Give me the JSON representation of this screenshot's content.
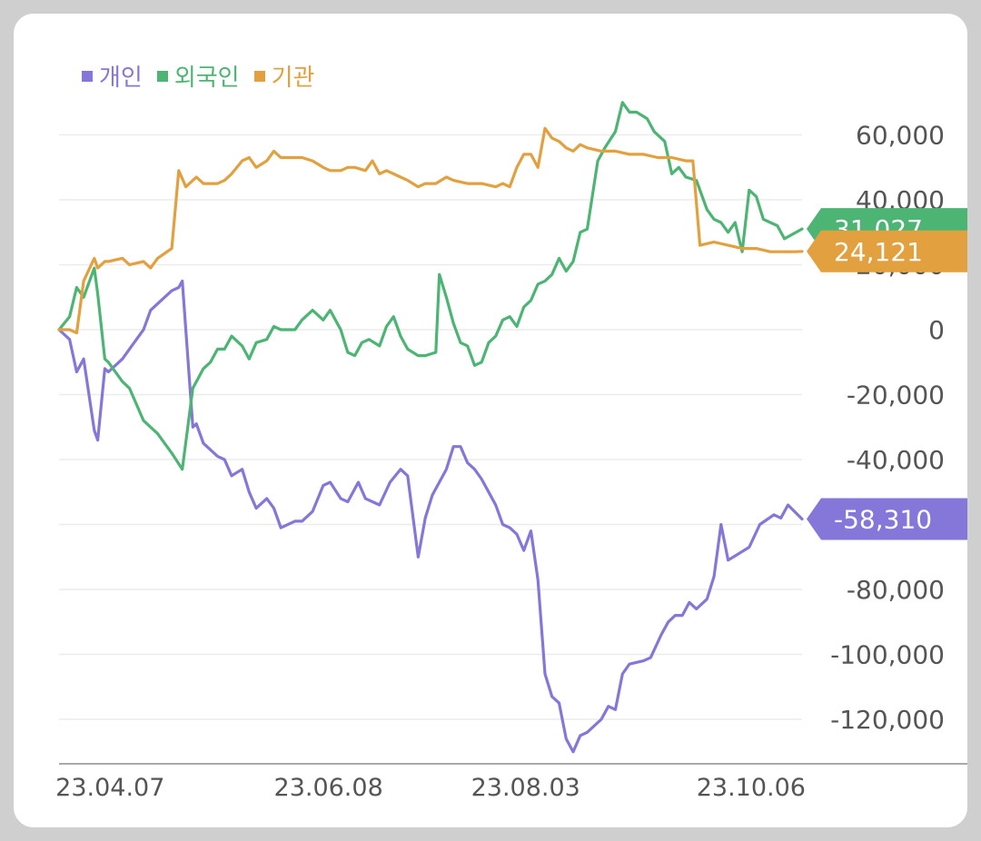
{
  "chart_data": {
    "type": "line",
    "title": "",
    "xlabel": "",
    "ylabel": "",
    "ylim": [
      -130000,
      70000
    ],
    "yticks": [
      60000,
      40000,
      20000,
      0,
      -20000,
      -40000,
      -60000,
      -80000,
      -100000,
      -120000
    ],
    "ytick_labels": [
      "60,000",
      "40,000",
      "20,000",
      "0",
      "-20,000",
      "-40,000",
      "-60,000",
      "-80,000",
      "-100,000",
      "-120,000"
    ],
    "xticks": [
      "23.04.07",
      "23.06.08",
      "23.08.03",
      "23.10.06"
    ],
    "grid": true,
    "legend_position": "top-left",
    "series": [
      {
        "name": "개인",
        "color": "#8577d9",
        "last_label": "-58,310",
        "points": [
          [
            "2023-03-24",
            0
          ],
          [
            "2023-03-27",
            -3000
          ],
          [
            "2023-03-29",
            -13000
          ],
          [
            "2023-03-31",
            -9000
          ],
          [
            "2023-04-03",
            -31000
          ],
          [
            "2023-04-04",
            -34000
          ],
          [
            "2023-04-06",
            -12000
          ],
          [
            "2023-04-07",
            -13000
          ],
          [
            "2023-04-11",
            -9000
          ],
          [
            "2023-04-13",
            -6000
          ],
          [
            "2023-04-17",
            0
          ],
          [
            "2023-04-19",
            6000
          ],
          [
            "2023-04-21",
            8000
          ],
          [
            "2023-04-25",
            12000
          ],
          [
            "2023-04-27",
            13000
          ],
          [
            "2023-04-28",
            15000
          ],
          [
            "2023-05-01",
            -30000
          ],
          [
            "2023-05-02",
            -29000
          ],
          [
            "2023-05-04",
            -35000
          ],
          [
            "2023-05-08",
            -39000
          ],
          [
            "2023-05-10",
            -40000
          ],
          [
            "2023-05-12",
            -45000
          ],
          [
            "2023-05-15",
            -43000
          ],
          [
            "2023-05-17",
            -50000
          ],
          [
            "2023-05-19",
            -55000
          ],
          [
            "2023-05-22",
            -52000
          ],
          [
            "2023-05-24",
            -55000
          ],
          [
            "2023-05-26",
            -61000
          ],
          [
            "2023-05-30",
            -59000
          ],
          [
            "2023-06-01",
            -59000
          ],
          [
            "2023-06-04",
            -56000
          ],
          [
            "2023-06-07",
            -48000
          ],
          [
            "2023-06-09",
            -47000
          ],
          [
            "2023-06-12",
            -52000
          ],
          [
            "2023-06-14",
            -53000
          ],
          [
            "2023-06-17",
            -47000
          ],
          [
            "2023-06-19",
            -52000
          ],
          [
            "2023-06-23",
            -54000
          ],
          [
            "2023-06-26",
            -47000
          ],
          [
            "2023-06-29",
            -43000
          ],
          [
            "2023-07-01",
            -45000
          ],
          [
            "2023-07-04",
            -70000
          ],
          [
            "2023-07-06",
            -58000
          ],
          [
            "2023-07-08",
            -51000
          ],
          [
            "2023-07-12",
            -43000
          ],
          [
            "2023-07-14",
            -36000
          ],
          [
            "2023-07-16",
            -36000
          ],
          [
            "2023-07-18",
            -41000
          ],
          [
            "2023-07-20",
            -43000
          ],
          [
            "2023-07-22",
            -46000
          ],
          [
            "2023-07-24",
            -50000
          ],
          [
            "2023-07-26",
            -54000
          ],
          [
            "2023-07-28",
            -60000
          ],
          [
            "2023-07-30",
            -61000
          ],
          [
            "2023-08-01",
            -63000
          ],
          [
            "2023-08-03",
            -68000
          ],
          [
            "2023-08-05",
            -62000
          ],
          [
            "2023-08-07",
            -77000
          ],
          [
            "2023-08-09",
            -106000
          ],
          [
            "2023-08-11",
            -113000
          ],
          [
            "2023-08-13",
            -115000
          ],
          [
            "2023-08-15",
            -126000
          ],
          [
            "2023-08-17",
            -130000
          ],
          [
            "2023-08-19",
            -125000
          ],
          [
            "2023-08-21",
            -124000
          ],
          [
            "2023-08-25",
            -120000
          ],
          [
            "2023-08-27",
            -116000
          ],
          [
            "2023-08-29",
            -117000
          ],
          [
            "2023-08-31",
            -106000
          ],
          [
            "2023-09-02",
            -103000
          ],
          [
            "2023-09-06",
            -102000
          ],
          [
            "2023-09-08",
            -101000
          ],
          [
            "2023-09-11",
            -94000
          ],
          [
            "2023-09-13",
            -90000
          ],
          [
            "2023-09-15",
            -88000
          ],
          [
            "2023-09-17",
            -88000
          ],
          [
            "2023-09-19",
            -84000
          ],
          [
            "2023-09-21",
            -86000
          ],
          [
            "2023-09-24",
            -83000
          ],
          [
            "2023-09-26",
            -76000
          ],
          [
            "2023-09-28",
            -60000
          ],
          [
            "2023-09-30",
            -71000
          ],
          [
            "2023-10-06",
            -67000
          ],
          [
            "2023-10-09",
            -60000
          ],
          [
            "2023-10-13",
            -57000
          ],
          [
            "2023-10-15",
            -58000
          ],
          [
            "2023-10-17",
            -54000
          ],
          [
            "2023-10-21",
            -58310
          ]
        ]
      },
      {
        "name": "외국인",
        "color": "#4db574",
        "last_label": "31,027",
        "points": [
          [
            "2023-03-24",
            0
          ],
          [
            "2023-03-27",
            4000
          ],
          [
            "2023-03-29",
            13000
          ],
          [
            "2023-03-31",
            10000
          ],
          [
            "2023-04-03",
            19000
          ],
          [
            "2023-04-04",
            11000
          ],
          [
            "2023-04-06",
            -9000
          ],
          [
            "2023-04-07",
            -10000
          ],
          [
            "2023-04-11",
            -16000
          ],
          [
            "2023-04-13",
            -18000
          ],
          [
            "2023-04-17",
            -28000
          ],
          [
            "2023-04-19",
            -30000
          ],
          [
            "2023-04-21",
            -32000
          ],
          [
            "2023-04-25",
            -38000
          ],
          [
            "2023-04-28",
            -43000
          ],
          [
            "2023-05-01",
            -18000
          ],
          [
            "2023-05-02",
            -16000
          ],
          [
            "2023-05-04",
            -12000
          ],
          [
            "2023-05-06",
            -10000
          ],
          [
            "2023-05-08",
            -6000
          ],
          [
            "2023-05-10",
            -6000
          ],
          [
            "2023-05-12",
            -2000
          ],
          [
            "2023-05-15",
            -5000
          ],
          [
            "2023-05-17",
            -9000
          ],
          [
            "2023-05-19",
            -4000
          ],
          [
            "2023-05-22",
            -3000
          ],
          [
            "2023-05-24",
            1000
          ],
          [
            "2023-05-26",
            0
          ],
          [
            "2023-05-30",
            0
          ],
          [
            "2023-06-01",
            3000
          ],
          [
            "2023-06-04",
            6000
          ],
          [
            "2023-06-07",
            3000
          ],
          [
            "2023-06-09",
            6000
          ],
          [
            "2023-06-12",
            0
          ],
          [
            "2023-06-14",
            -7000
          ],
          [
            "2023-06-16",
            -8000
          ],
          [
            "2023-06-18",
            -4000
          ],
          [
            "2023-06-20",
            -3000
          ],
          [
            "2023-06-23",
            -5000
          ],
          [
            "2023-06-25",
            1000
          ],
          [
            "2023-06-27",
            4000
          ],
          [
            "2023-06-29",
            -2000
          ],
          [
            "2023-07-01",
            -6000
          ],
          [
            "2023-07-04",
            -8000
          ],
          [
            "2023-07-06",
            -8000
          ],
          [
            "2023-07-09",
            -7000
          ],
          [
            "2023-07-10",
            17000
          ],
          [
            "2023-07-12",
            10000
          ],
          [
            "2023-07-14",
            2000
          ],
          [
            "2023-07-16",
            -4000
          ],
          [
            "2023-07-18",
            -5000
          ],
          [
            "2023-07-20",
            -11000
          ],
          [
            "2023-07-22",
            -10000
          ],
          [
            "2023-07-24",
            -4000
          ],
          [
            "2023-07-26",
            -2000
          ],
          [
            "2023-07-28",
            3000
          ],
          [
            "2023-07-30",
            4000
          ],
          [
            "2023-08-01",
            1000
          ],
          [
            "2023-08-03",
            7000
          ],
          [
            "2023-08-05",
            9000
          ],
          [
            "2023-08-07",
            14000
          ],
          [
            "2023-08-09",
            15000
          ],
          [
            "2023-08-11",
            17000
          ],
          [
            "2023-08-13",
            22000
          ],
          [
            "2023-08-15",
            18000
          ],
          [
            "2023-08-17",
            21000
          ],
          [
            "2023-08-19",
            30000
          ],
          [
            "2023-08-21",
            31000
          ],
          [
            "2023-08-24",
            52000
          ],
          [
            "2023-08-26",
            56000
          ],
          [
            "2023-08-29",
            61000
          ],
          [
            "2023-08-31",
            70000
          ],
          [
            "2023-09-02",
            67000
          ],
          [
            "2023-09-04",
            67000
          ],
          [
            "2023-09-07",
            65000
          ],
          [
            "2023-09-09",
            61000
          ],
          [
            "2023-09-12",
            58000
          ],
          [
            "2023-09-14",
            48000
          ],
          [
            "2023-09-16",
            50000
          ],
          [
            "2023-09-18",
            47000
          ],
          [
            "2023-09-21",
            46000
          ],
          [
            "2023-09-24",
            37000
          ],
          [
            "2023-09-26",
            34000
          ],
          [
            "2023-09-28",
            33000
          ],
          [
            "2023-09-30",
            30000
          ],
          [
            "2023-10-02",
            33000
          ],
          [
            "2023-10-04",
            24000
          ],
          [
            "2023-10-06",
            43000
          ],
          [
            "2023-10-08",
            41000
          ],
          [
            "2023-10-10",
            34000
          ],
          [
            "2023-10-12",
            33000
          ],
          [
            "2023-10-14",
            32000
          ],
          [
            "2023-10-16",
            28000
          ],
          [
            "2023-10-21",
            31027
          ]
        ]
      },
      {
        "name": "기관",
        "color": "#e2a03e",
        "last_label": "24,121",
        "points": [
          [
            "2023-03-24",
            0
          ],
          [
            "2023-03-27",
            0
          ],
          [
            "2023-03-29",
            -1000
          ],
          [
            "2023-03-31",
            15000
          ],
          [
            "2023-04-03",
            22000
          ],
          [
            "2023-04-04",
            19000
          ],
          [
            "2023-04-06",
            21000
          ],
          [
            "2023-04-07",
            21000
          ],
          [
            "2023-04-11",
            22000
          ],
          [
            "2023-04-13",
            20000
          ],
          [
            "2023-04-17",
            21000
          ],
          [
            "2023-04-19",
            19000
          ],
          [
            "2023-04-21",
            22000
          ],
          [
            "2023-04-25",
            25000
          ],
          [
            "2023-04-27",
            49000
          ],
          [
            "2023-04-29",
            44000
          ],
          [
            "2023-05-02",
            47000
          ],
          [
            "2023-05-04",
            45000
          ],
          [
            "2023-05-08",
            45000
          ],
          [
            "2023-05-10",
            46000
          ],
          [
            "2023-05-12",
            48000
          ],
          [
            "2023-05-15",
            52000
          ],
          [
            "2023-05-17",
            53000
          ],
          [
            "2023-05-19",
            50000
          ],
          [
            "2023-05-22",
            52000
          ],
          [
            "2023-05-24",
            55000
          ],
          [
            "2023-05-26",
            53000
          ],
          [
            "2023-05-30",
            53000
          ],
          [
            "2023-06-01",
            53000
          ],
          [
            "2023-06-04",
            52000
          ],
          [
            "2023-06-07",
            50000
          ],
          [
            "2023-06-09",
            49000
          ],
          [
            "2023-06-12",
            49000
          ],
          [
            "2023-06-14",
            50000
          ],
          [
            "2023-06-16",
            50000
          ],
          [
            "2023-06-19",
            49000
          ],
          [
            "2023-06-21",
            52000
          ],
          [
            "2023-06-23",
            48000
          ],
          [
            "2023-06-25",
            49000
          ],
          [
            "2023-06-29",
            47000
          ],
          [
            "2023-07-01",
            46000
          ],
          [
            "2023-07-04",
            44000
          ],
          [
            "2023-07-06",
            45000
          ],
          [
            "2023-07-09",
            45000
          ],
          [
            "2023-07-12",
            47000
          ],
          [
            "2023-07-14",
            46000
          ],
          [
            "2023-07-18",
            45000
          ],
          [
            "2023-07-22",
            45000
          ],
          [
            "2023-07-26",
            44000
          ],
          [
            "2023-07-28",
            45000
          ],
          [
            "2023-07-30",
            44000
          ],
          [
            "2023-08-01",
            50000
          ],
          [
            "2023-08-03",
            54000
          ],
          [
            "2023-08-05",
            54000
          ],
          [
            "2023-08-07",
            50000
          ],
          [
            "2023-08-09",
            62000
          ],
          [
            "2023-08-11",
            59000
          ],
          [
            "2023-08-13",
            58000
          ],
          [
            "2023-08-15",
            56000
          ],
          [
            "2023-08-17",
            55000
          ],
          [
            "2023-08-19",
            57000
          ],
          [
            "2023-08-21",
            56000
          ],
          [
            "2023-08-25",
            55000
          ],
          [
            "2023-08-29",
            55000
          ],
          [
            "2023-09-02",
            54000
          ],
          [
            "2023-09-06",
            54000
          ],
          [
            "2023-09-10",
            53000
          ],
          [
            "2023-09-14",
            53000
          ],
          [
            "2023-09-18",
            52000
          ],
          [
            "2023-09-20",
            52000
          ],
          [
            "2023-09-22",
            26000
          ],
          [
            "2023-09-26",
            27000
          ],
          [
            "2023-09-30",
            26000
          ],
          [
            "2023-10-04",
            25000
          ],
          [
            "2023-10-08",
            25000
          ],
          [
            "2023-10-12",
            24000
          ],
          [
            "2023-10-15",
            24000
          ],
          [
            "2023-10-17",
            24000
          ],
          [
            "2023-10-19",
            24000
          ],
          [
            "2023-10-21",
            24121
          ]
        ]
      }
    ]
  }
}
